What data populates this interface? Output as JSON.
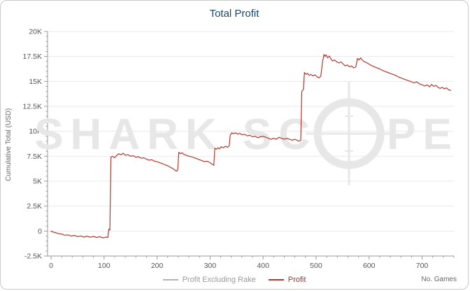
{
  "title": "Total Profit",
  "ylabel": "Cumulative Total (USD)",
  "xlabel": "No. Games",
  "watermark": {
    "left": "SHARK SC",
    "right": "PE"
  },
  "legend": [
    {
      "label": "Profit Excluding Rake",
      "color": "#b3b3b3",
      "text_color": "#9a9a9a"
    },
    {
      "label": "Profit",
      "color": "#b03a2e",
      "text_color": "#8e3a32"
    }
  ],
  "colors": {
    "title": "#1b4766",
    "axis": "#9a9a9a",
    "grid": "#e9e9e9",
    "tick_text": "#555555",
    "line": "#b03a2e",
    "watermark": "#e7e7e7"
  },
  "chart_data": {
    "type": "line",
    "title": "Total Profit",
    "xlabel": "No. Games",
    "ylabel": "Cumulative Total (USD)",
    "xlim": [
      0,
      760
    ],
    "ylim": [
      -2500,
      20000
    ],
    "grid": "horizontal",
    "legend_position": "bottom",
    "x_ticks": [
      {
        "v": 0,
        "label": "0"
      },
      {
        "v": 100,
        "label": "100"
      },
      {
        "v": 200,
        "label": "200"
      },
      {
        "v": 300,
        "label": "300"
      },
      {
        "v": 400,
        "label": "400"
      },
      {
        "v": 500,
        "label": "500"
      },
      {
        "v": 600,
        "label": "600"
      },
      {
        "v": 700,
        "label": "700"
      }
    ],
    "y_ticks": [
      {
        "v": 20000,
        "label": "20K"
      },
      {
        "v": 17500,
        "label": "17.5K"
      },
      {
        "v": 15000,
        "label": "15K"
      },
      {
        "v": 12500,
        "label": "12.5K"
      },
      {
        "v": 10000,
        "label": "10K"
      },
      {
        "v": 7500,
        "label": "7.5K"
      },
      {
        "v": 5000,
        "label": "5K"
      },
      {
        "v": 2500,
        "label": "2.5K"
      },
      {
        "v": 0,
        "label": "0"
      },
      {
        "v": -2500,
        "label": "-2.5K"
      }
    ],
    "x_minor_step": 20,
    "y_minor_step": 500,
    "series": [
      {
        "name": "Profit",
        "color": "#b03a2e",
        "points": [
          [
            0,
            0
          ],
          [
            4,
            -100
          ],
          [
            8,
            -150
          ],
          [
            14,
            -250
          ],
          [
            20,
            -300
          ],
          [
            26,
            -420
          ],
          [
            32,
            -380
          ],
          [
            38,
            -500
          ],
          [
            44,
            -430
          ],
          [
            50,
            -550
          ],
          [
            56,
            -480
          ],
          [
            62,
            -600
          ],
          [
            68,
            -500
          ],
          [
            74,
            -620
          ],
          [
            80,
            -520
          ],
          [
            86,
            -640
          ],
          [
            92,
            -560
          ],
          [
            98,
            -680
          ],
          [
            104,
            -600
          ],
          [
            107,
            -650
          ],
          [
            109,
            200
          ],
          [
            111,
            100
          ],
          [
            113,
            7400
          ],
          [
            116,
            7500
          ],
          [
            120,
            7350
          ],
          [
            124,
            7600
          ],
          [
            128,
            7750
          ],
          [
            132,
            7650
          ],
          [
            136,
            7800
          ],
          [
            140,
            7600
          ],
          [
            145,
            7650
          ],
          [
            150,
            7500
          ],
          [
            155,
            7550
          ],
          [
            160,
            7400
          ],
          [
            165,
            7450
          ],
          [
            170,
            7300
          ],
          [
            175,
            7350
          ],
          [
            180,
            7200
          ],
          [
            185,
            7100
          ],
          [
            190,
            7150
          ],
          [
            195,
            7000
          ],
          [
            200,
            6950
          ],
          [
            205,
            6850
          ],
          [
            210,
            6750
          ],
          [
            215,
            6650
          ],
          [
            220,
            6550
          ],
          [
            225,
            6400
          ],
          [
            230,
            6250
          ],
          [
            234,
            6100
          ],
          [
            237,
            6000
          ],
          [
            239,
            6150
          ],
          [
            241,
            7900
          ],
          [
            244,
            7750
          ],
          [
            247,
            7850
          ],
          [
            250,
            7700
          ],
          [
            255,
            7600
          ],
          [
            260,
            7500
          ],
          [
            265,
            7450
          ],
          [
            270,
            7350
          ],
          [
            275,
            7250
          ],
          [
            280,
            7150
          ],
          [
            285,
            7050
          ],
          [
            290,
            6950
          ],
          [
            295,
            7000
          ],
          [
            300,
            6850
          ],
          [
            304,
            6700
          ],
          [
            307,
            6600
          ],
          [
            309,
            8300
          ],
          [
            312,
            8200
          ],
          [
            315,
            8350
          ],
          [
            318,
            8250
          ],
          [
            321,
            8450
          ],
          [
            325,
            8350
          ],
          [
            329,
            8500
          ],
          [
            333,
            8400
          ],
          [
            336,
            8550
          ],
          [
            338,
            9600
          ],
          [
            341,
            9850
          ],
          [
            344,
            9750
          ],
          [
            348,
            9850
          ],
          [
            352,
            9700
          ],
          [
            356,
            9800
          ],
          [
            360,
            9650
          ],
          [
            365,
            9700
          ],
          [
            370,
            9550
          ],
          [
            375,
            9600
          ],
          [
            380,
            9450
          ],
          [
            385,
            9500
          ],
          [
            390,
            9350
          ],
          [
            395,
            9450
          ],
          [
            400,
            9500
          ],
          [
            405,
            9400
          ],
          [
            410,
            9300
          ],
          [
            415,
            9200
          ],
          [
            420,
            9300
          ],
          [
            425,
            9200
          ],
          [
            430,
            9400
          ],
          [
            435,
            9300
          ],
          [
            440,
            9200
          ],
          [
            445,
            9300
          ],
          [
            450,
            9200
          ],
          [
            455,
            9100
          ],
          [
            460,
            9200
          ],
          [
            464,
            9100
          ],
          [
            468,
            9000
          ],
          [
            471,
            9100
          ],
          [
            473,
            14000
          ],
          [
            476,
            14200
          ],
          [
            478,
            15900
          ],
          [
            481,
            15700
          ],
          [
            484,
            15800
          ],
          [
            487,
            15600
          ],
          [
            490,
            15700
          ],
          [
            494,
            15550
          ],
          [
            498,
            15650
          ],
          [
            502,
            15450
          ],
          [
            506,
            15350
          ],
          [
            509,
            15550
          ],
          [
            512,
            16900
          ],
          [
            515,
            17700
          ],
          [
            517,
            17500
          ],
          [
            519,
            17650
          ],
          [
            522,
            17350
          ],
          [
            525,
            17550
          ],
          [
            528,
            17250
          ],
          [
            531,
            17050
          ],
          [
            535,
            17150
          ],
          [
            539,
            16950
          ],
          [
            543,
            16850
          ],
          [
            547,
            16950
          ],
          [
            551,
            16750
          ],
          [
            555,
            16550
          ],
          [
            559,
            16650
          ],
          [
            563,
            16450
          ],
          [
            567,
            16550
          ],
          [
            571,
            16350
          ],
          [
            575,
            16450
          ],
          [
            578,
            17300
          ],
          [
            581,
            17150
          ],
          [
            584,
            17350
          ],
          [
            587,
            17150
          ],
          [
            590,
            17000
          ],
          [
            594,
            16900
          ],
          [
            598,
            16800
          ],
          [
            602,
            16650
          ],
          [
            606,
            16550
          ],
          [
            610,
            16450
          ],
          [
            615,
            16350
          ],
          [
            620,
            16250
          ],
          [
            625,
            16100
          ],
          [
            630,
            16000
          ],
          [
            635,
            15900
          ],
          [
            640,
            15800
          ],
          [
            645,
            15700
          ],
          [
            650,
            15600
          ],
          [
            655,
            15450
          ],
          [
            660,
            15350
          ],
          [
            665,
            15250
          ],
          [
            670,
            15150
          ],
          [
            675,
            15050
          ],
          [
            680,
            14950
          ],
          [
            685,
            14850
          ],
          [
            690,
            14950
          ],
          [
            695,
            14750
          ],
          [
            700,
            14650
          ],
          [
            705,
            14550
          ],
          [
            710,
            14650
          ],
          [
            714,
            14450
          ],
          [
            718,
            14700
          ],
          [
            722,
            14500
          ],
          [
            726,
            14600
          ],
          [
            730,
            14400
          ],
          [
            734,
            14300
          ],
          [
            738,
            14400
          ],
          [
            742,
            14250
          ],
          [
            746,
            14350
          ],
          [
            750,
            14150
          ],
          [
            754,
            14100
          ]
        ]
      }
    ]
  }
}
